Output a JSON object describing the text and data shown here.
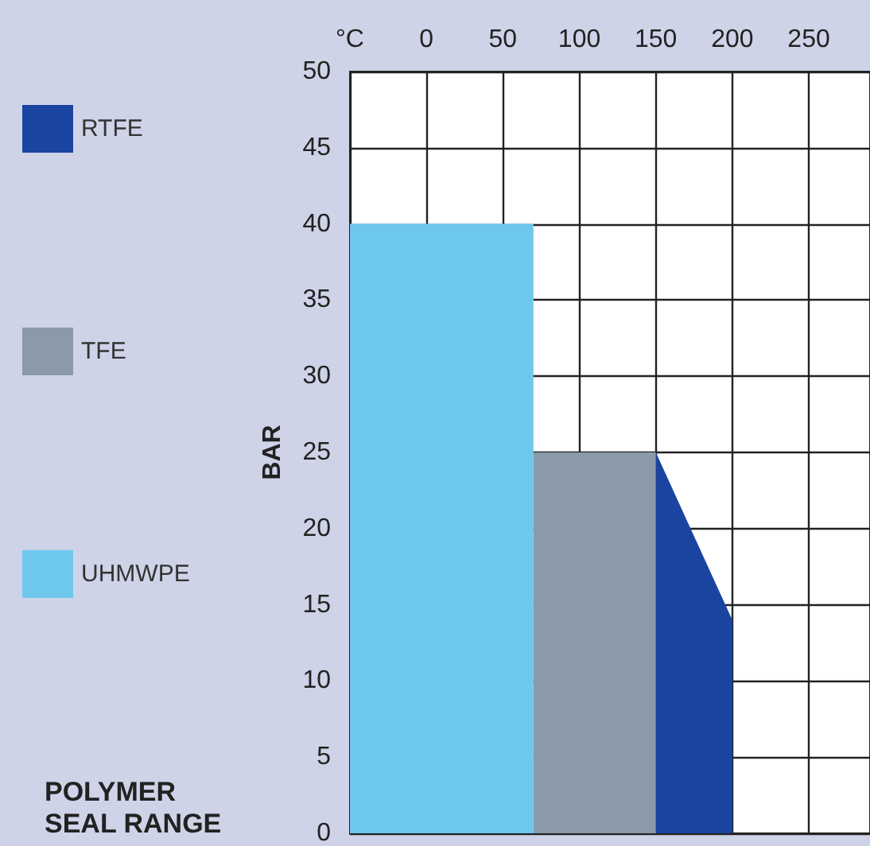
{
  "chart_data": {
    "type": "area",
    "ylabel": "BAR",
    "legend_title": "POLYMER SEAL RANGE",
    "xlim": [
      -50,
      290
    ],
    "xticks": [
      {
        "value": -50,
        "label": "°C"
      },
      0,
      50,
      100,
      150,
      200,
      250
    ],
    "ylim": [
      0,
      50
    ],
    "yticks": [
      0,
      5,
      10,
      15,
      20,
      25,
      30,
      35,
      40,
      45,
      50
    ],
    "grid": true,
    "legend": "left",
    "series": [
      {
        "name": "RTFE",
        "color": "#1a44a0",
        "x": [
          150,
          200
        ],
        "values": [
          25,
          14
        ]
      },
      {
        "name": "TFE",
        "color": "#8a9aa9",
        "x": [
          70,
          150
        ],
        "values": [
          25,
          25
        ]
      },
      {
        "name": "UHMWPE",
        "color": "#6ec8ee",
        "x": [
          -50,
          70
        ],
        "values": [
          40,
          40
        ]
      }
    ]
  }
}
